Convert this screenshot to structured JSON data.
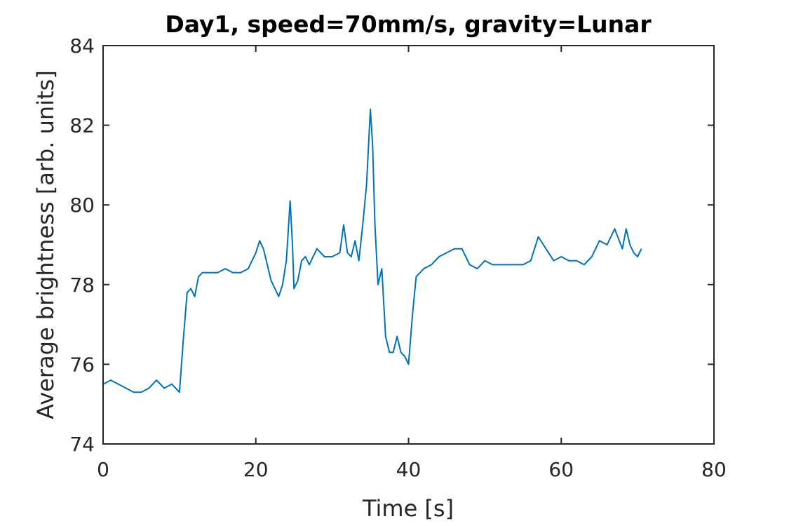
{
  "chart_data": {
    "type": "line",
    "title": "Day1, speed=70mm/s, gravity=Lunar",
    "xlabel": "Time [s]",
    "ylabel": "Average brightness [arb. units]",
    "xlim": [
      0,
      80
    ],
    "ylim": [
      74,
      84
    ],
    "xticks": [
      0,
      20,
      40,
      60,
      80
    ],
    "yticks": [
      74,
      76,
      78,
      80,
      82,
      84
    ],
    "grid": false,
    "legend": "none",
    "color": "#0072bd",
    "series": [
      {
        "x": [
          0,
          1,
          2,
          3,
          4,
          5,
          6,
          7,
          8,
          9,
          10,
          10.5,
          11,
          11.5,
          12,
          12.5,
          13,
          14,
          15,
          16,
          17,
          18,
          19,
          20,
          20.5,
          21,
          21.5,
          22,
          23,
          23.5,
          24,
          24.5,
          24.8,
          25,
          25.5,
          26,
          26.5,
          27,
          28,
          29,
          30,
          31,
          31.5,
          32,
          32.5,
          33,
          33.5,
          34,
          34.5,
          35,
          35.3,
          35.6,
          36,
          36.5,
          37,
          37.5,
          38,
          38.5,
          39,
          39.5,
          40,
          40.5,
          41,
          41.5,
          42,
          43,
          44,
          45,
          46,
          47,
          48,
          49,
          50,
          51,
          52,
          53,
          54,
          55,
          56,
          57,
          58,
          59,
          60,
          61,
          62,
          63,
          64,
          65,
          66,
          67,
          68,
          68.5,
          69,
          69.5,
          70,
          70.5
        ],
        "y": [
          75.5,
          75.6,
          75.5,
          75.4,
          75.3,
          75.3,
          75.4,
          75.6,
          75.4,
          75.5,
          75.3,
          76.6,
          77.8,
          77.9,
          77.7,
          78.2,
          78.3,
          78.3,
          78.3,
          78.4,
          78.3,
          78.3,
          78.4,
          78.8,
          79.1,
          78.9,
          78.5,
          78.1,
          77.7,
          78.0,
          78.6,
          80.1,
          79.0,
          77.9,
          78.1,
          78.6,
          78.7,
          78.5,
          78.9,
          78.7,
          78.7,
          78.8,
          79.5,
          78.8,
          78.7,
          79.1,
          78.6,
          79.5,
          80.5,
          82.4,
          81.5,
          79.5,
          78.0,
          78.4,
          76.7,
          76.3,
          76.3,
          76.7,
          76.3,
          76.2,
          76.0,
          77.2,
          78.2,
          78.3,
          78.4,
          78.5,
          78.7,
          78.8,
          78.9,
          78.9,
          78.5,
          78.4,
          78.6,
          78.5,
          78.5,
          78.5,
          78.5,
          78.5,
          78.6,
          79.2,
          78.9,
          78.6,
          78.7,
          78.6,
          78.6,
          78.5,
          78.7,
          79.1,
          79.0,
          79.4,
          78.9,
          79.4,
          79.0,
          78.8,
          78.7,
          78.9
        ]
      }
    ]
  }
}
